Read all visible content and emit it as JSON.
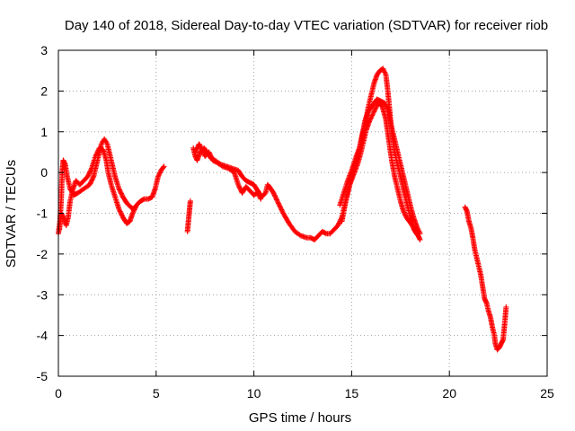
{
  "chart_data": {
    "type": "scatter",
    "title": "Day 140 of 2018, Sidereal Day-to-day VTEC variation (SDTVAR) for receiver riob",
    "xlabel": "GPS time / hours",
    "ylabel": "SDTVAR / TECUs",
    "xlim": [
      0,
      25
    ],
    "ylim": [
      -5,
      3
    ],
    "xticks": [
      0,
      5,
      10,
      15,
      20,
      25
    ],
    "yticks": [
      -5,
      -4,
      -3,
      -2,
      -1,
      0,
      1,
      2,
      3
    ],
    "grid": true,
    "marker": "+",
    "series_color": "#ff0000",
    "series": [
      {
        "name": "SDTVAR",
        "segments": [
          [
            [
              0.0,
              -1.5
            ],
            [
              0.08,
              -1.2
            ],
            [
              0.15,
              -0.6
            ],
            [
              0.2,
              0.05
            ],
            [
              0.25,
              0.3
            ],
            [
              0.35,
              0.2
            ],
            [
              0.45,
              -0.1
            ],
            [
              0.6,
              -0.4
            ],
            [
              0.8,
              -0.55
            ],
            [
              1.0,
              -0.5
            ],
            [
              1.3,
              -0.4
            ],
            [
              1.6,
              -0.3
            ],
            [
              1.8,
              -0.1
            ],
            [
              2.0,
              0.3
            ],
            [
              2.2,
              0.7
            ],
            [
              2.35,
              0.82
            ],
            [
              2.5,
              0.7
            ],
            [
              2.7,
              0.3
            ],
            [
              2.9,
              -0.1
            ],
            [
              3.1,
              -0.4
            ],
            [
              3.3,
              -0.6
            ],
            [
              3.5,
              -0.75
            ],
            [
              3.7,
              -0.85
            ],
            [
              3.85,
              -0.9
            ],
            [
              4.0,
              -0.8
            ],
            [
              4.2,
              -0.7
            ],
            [
              4.4,
              -0.65
            ],
            [
              4.6,
              -0.65
            ],
            [
              4.8,
              -0.6
            ],
            [
              4.95,
              -0.4
            ],
            [
              5.1,
              -0.1
            ],
            [
              5.25,
              0.05
            ],
            [
              5.4,
              0.15
            ]
          ],
          [
            [
              0.05,
              -1.4
            ],
            [
              0.15,
              -1.0
            ],
            [
              0.25,
              -1.1
            ],
            [
              0.4,
              -1.3
            ],
            [
              0.5,
              -1.1
            ],
            [
              0.6,
              -0.7
            ],
            [
              0.75,
              -0.4
            ],
            [
              0.9,
              -0.2
            ],
            [
              1.1,
              -0.3
            ],
            [
              1.3,
              -0.2
            ],
            [
              1.5,
              -0.1
            ],
            [
              1.7,
              0.1
            ],
            [
              1.9,
              0.4
            ],
            [
              2.1,
              0.6
            ],
            [
              2.3,
              0.55
            ],
            [
              2.45,
              0.3
            ],
            [
              2.55,
              0.0
            ],
            [
              2.7,
              -0.3
            ],
            [
              2.9,
              -0.6
            ],
            [
              3.1,
              -0.9
            ],
            [
              3.3,
              -1.1
            ],
            [
              3.5,
              -1.25
            ],
            [
              3.65,
              -1.2
            ],
            [
              3.8,
              -1.0
            ],
            [
              3.95,
              -0.85
            ]
          ],
          [
            [
              6.6,
              -1.45
            ],
            [
              6.65,
              -1.2
            ],
            [
              6.7,
              -0.95
            ],
            [
              6.75,
              -0.7
            ]
          ],
          [
            [
              6.9,
              0.6
            ],
            [
              7.0,
              0.4
            ],
            [
              7.1,
              0.3
            ],
            [
              7.25,
              0.5
            ],
            [
              7.45,
              0.6
            ],
            [
              7.6,
              0.5
            ],
            [
              7.8,
              0.35
            ],
            [
              8.0,
              0.3
            ],
            [
              8.3,
              0.2
            ],
            [
              8.6,
              0.15
            ],
            [
              8.9,
              0.1
            ],
            [
              9.2,
              0.05
            ],
            [
              9.4,
              -0.1
            ],
            [
              9.6,
              -0.2
            ],
            [
              9.8,
              -0.25
            ],
            [
              10.0,
              -0.3
            ],
            [
              10.2,
              -0.45
            ],
            [
              10.4,
              -0.6
            ],
            [
              10.6,
              -0.5
            ],
            [
              10.7,
              -0.3
            ],
            [
              10.8,
              -0.35
            ],
            [
              11.0,
              -0.5
            ],
            [
              11.2,
              -0.7
            ],
            [
              11.5,
              -1.0
            ],
            [
              11.8,
              -1.25
            ],
            [
              12.1,
              -1.45
            ],
            [
              12.4,
              -1.55
            ],
            [
              12.7,
              -1.6
            ],
            [
              12.9,
              -1.6
            ],
            [
              13.1,
              -1.65
            ],
            [
              13.3,
              -1.55
            ],
            [
              13.5,
              -1.45
            ],
            [
              13.7,
              -1.5
            ],
            [
              13.9,
              -1.5
            ],
            [
              14.1,
              -1.4
            ],
            [
              14.3,
              -1.3
            ],
            [
              14.5,
              -1.1
            ],
            [
              14.65,
              -0.8
            ],
            [
              14.8,
              -0.5
            ],
            [
              14.95,
              -0.2
            ],
            [
              15.1,
              0.1
            ],
            [
              15.3,
              0.4
            ],
            [
              15.5,
              0.8
            ],
            [
              15.7,
              1.2
            ],
            [
              15.85,
              1.6
            ],
            [
              16.0,
              1.9
            ],
            [
              16.15,
              2.2
            ],
            [
              16.3,
              2.4
            ],
            [
              16.45,
              2.5
            ],
            [
              16.6,
              2.55
            ],
            [
              16.75,
              2.4
            ],
            [
              16.85,
              2.0
            ],
            [
              16.95,
              1.5
            ],
            [
              17.05,
              1.0
            ],
            [
              17.2,
              0.5
            ],
            [
              17.4,
              0.1
            ],
            [
              17.6,
              -0.3
            ],
            [
              17.8,
              -0.7
            ],
            [
              18.0,
              -1.1
            ],
            [
              18.2,
              -1.4
            ],
            [
              18.4,
              -1.55
            ],
            [
              18.5,
              -1.65
            ]
          ],
          [
            [
              7.0,
              0.5
            ],
            [
              7.2,
              0.7
            ],
            [
              7.35,
              0.55
            ],
            [
              7.5,
              0.4
            ],
            [
              7.7,
              0.5
            ],
            [
              7.9,
              0.3
            ],
            [
              8.1,
              0.25
            ],
            [
              8.4,
              0.15
            ],
            [
              8.7,
              0.1
            ],
            [
              9.0,
              0.0
            ],
            [
              9.2,
              -0.3
            ],
            [
              9.4,
              -0.5
            ],
            [
              9.6,
              -0.35
            ],
            [
              9.8,
              -0.45
            ],
            [
              10.0,
              -0.55
            ],
            [
              10.2,
              -0.5
            ],
            [
              10.35,
              -0.65
            ]
          ],
          [
            [
              14.4,
              -0.8
            ],
            [
              14.6,
              -0.5
            ],
            [
              14.8,
              -0.2
            ],
            [
              15.0,
              0.05
            ],
            [
              15.2,
              0.35
            ],
            [
              15.4,
              0.6
            ],
            [
              15.55,
              0.95
            ],
            [
              15.7,
              1.3
            ],
            [
              15.85,
              1.5
            ],
            [
              16.0,
              1.6
            ],
            [
              16.15,
              1.7
            ],
            [
              16.3,
              1.8
            ],
            [
              16.5,
              1.75
            ],
            [
              16.7,
              1.7
            ],
            [
              16.85,
              1.55
            ],
            [
              17.0,
              1.2
            ],
            [
              17.15,
              0.9
            ],
            [
              17.3,
              0.6
            ],
            [
              17.45,
              0.3
            ],
            [
              17.6,
              0.0
            ],
            [
              17.75,
              -0.3
            ],
            [
              17.9,
              -0.6
            ],
            [
              18.05,
              -0.9
            ],
            [
              18.2,
              -1.15
            ],
            [
              18.35,
              -1.35
            ],
            [
              18.5,
              -1.5
            ]
          ],
          [
            [
              14.5,
              -1.2
            ],
            [
              14.7,
              -0.7
            ],
            [
              14.9,
              -0.3
            ],
            [
              15.1,
              -0.05
            ],
            [
              15.3,
              0.2
            ],
            [
              15.45,
              0.45
            ],
            [
              15.6,
              0.75
            ],
            [
              15.75,
              1.05
            ],
            [
              15.9,
              1.25
            ],
            [
              16.05,
              1.4
            ],
            [
              16.2,
              1.55
            ],
            [
              16.35,
              1.7
            ],
            [
              16.55,
              1.65
            ],
            [
              16.75,
              1.3
            ],
            [
              16.9,
              0.8
            ],
            [
              17.05,
              0.3
            ],
            [
              17.2,
              -0.1
            ],
            [
              17.35,
              -0.4
            ],
            [
              17.5,
              -0.7
            ],
            [
              17.65,
              -0.95
            ],
            [
              17.8,
              -1.1
            ],
            [
              17.95,
              -1.2
            ],
            [
              18.1,
              -1.3
            ],
            [
              18.25,
              -1.45
            ],
            [
              18.4,
              -1.55
            ]
          ],
          [
            [
              20.8,
              -0.85
            ],
            [
              20.9,
              -0.95
            ],
            [
              21.0,
              -1.2
            ],
            [
              21.1,
              -1.35
            ],
            [
              21.2,
              -1.6
            ],
            [
              21.3,
              -1.9
            ],
            [
              21.45,
              -2.2
            ],
            [
              21.6,
              -2.5
            ],
            [
              21.7,
              -2.8
            ],
            [
              21.8,
              -3.1
            ],
            [
              21.9,
              -3.2
            ],
            [
              22.0,
              -3.4
            ],
            [
              22.1,
              -3.55
            ],
            [
              22.2,
              -3.8
            ],
            [
              22.3,
              -4.0
            ],
            [
              22.35,
              -4.2
            ],
            [
              22.45,
              -4.35
            ],
            [
              22.55,
              -4.3
            ],
            [
              22.65,
              -4.2
            ],
            [
              22.75,
              -4.1
            ],
            [
              22.85,
              -3.6
            ],
            [
              22.9,
              -3.3
            ]
          ]
        ]
      }
    ]
  }
}
